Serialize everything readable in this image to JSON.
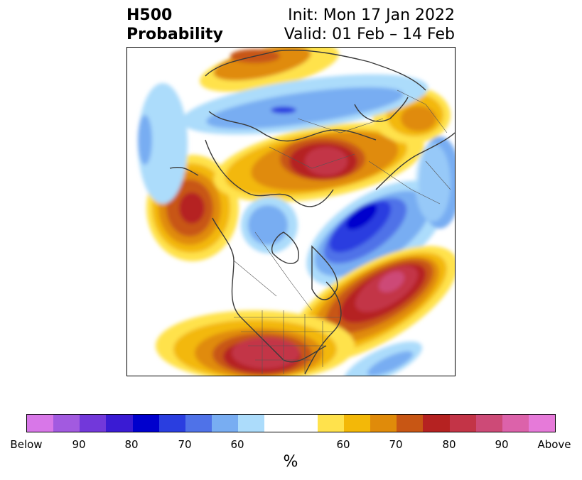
{
  "title": {
    "left_line1": "H500",
    "left_line2": "Probability",
    "right_line1": "Init: Mon 17 Jan 2022",
    "right_line2": "Valid: 01 Feb – 14 Feb"
  },
  "colorbar": {
    "colors": [
      "#d877e8",
      "#a25ae0",
      "#7238da",
      "#3a1bd3",
      "#0000cd",
      "#2a3ee0",
      "#4f72e8",
      "#78adf2",
      "#acdcfb",
      "#ffffff",
      "#ffffff",
      "#ffe24c",
      "#f3b808",
      "#e08b0a",
      "#c85614",
      "#b52221",
      "#c33447",
      "#cd4a77",
      "#dc62aa",
      "#e67ad9"
    ],
    "tick_labels": [
      "Below",
      "90",
      "80",
      "70",
      "60",
      "60",
      "70",
      "80",
      "90",
      "Above"
    ],
    "unit": "%"
  },
  "map": {
    "icons": [
      "orthographic-map",
      "coastline-lines",
      "border-lines"
    ],
    "anomaly_colors": {
      "below_60": "#acdcfb",
      "below_70": "#78adf2",
      "below_80": "#2a3ee0",
      "below_90": "#0000cd",
      "above_60": "#ffe24c",
      "above_65": "#f3b808",
      "above_70": "#e08b0a",
      "above_75": "#c85614",
      "above_80": "#b52221",
      "above_85": "#c33447",
      "above_90": "#cd4a77"
    }
  }
}
